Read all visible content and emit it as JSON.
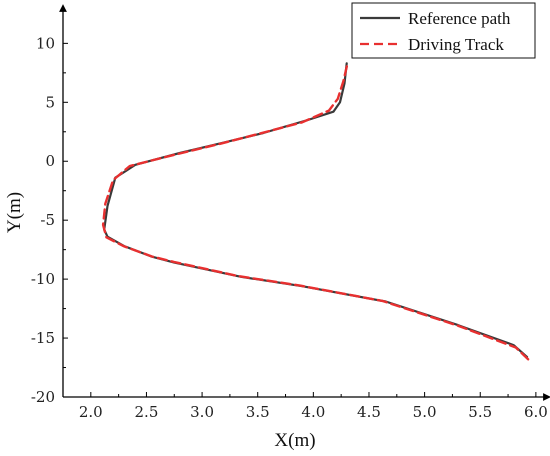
{
  "chart_data": {
    "type": "line",
    "xlabel": "X(m)",
    "ylabel": "Y(m)",
    "xlim": [
      1.75,
      6.1
    ],
    "ylim": [
      -20,
      13
    ],
    "xticks": [
      2.0,
      2.5,
      3.0,
      3.5,
      4.0,
      4.5,
      5.0,
      5.5,
      6.0
    ],
    "xtick_labels": [
      "2.0",
      "2.5",
      "3.0",
      "3.5",
      "4.0",
      "4.5",
      "5.0",
      "5.5",
      "6.0"
    ],
    "yticks": [
      -20,
      -15,
      -10,
      -5,
      0,
      5,
      10
    ],
    "ytick_labels": [
      "-20",
      "-15",
      "-10",
      "-5",
      "0",
      "5",
      "10"
    ],
    "grid": false,
    "legend_position": "top-right",
    "series": [
      {
        "name": "Reference path",
        "color": "#3a3a3a",
        "style": "solid",
        "points": [
          [
            5.92,
            -16.6
          ],
          [
            5.8,
            -15.6
          ],
          [
            5.3,
            -13.9
          ],
          [
            4.65,
            -11.9
          ],
          [
            3.9,
            -10.6
          ],
          [
            3.35,
            -9.8
          ],
          [
            2.75,
            -8.6
          ],
          [
            2.55,
            -8.1
          ],
          [
            2.3,
            -7.2
          ],
          [
            2.15,
            -6.4
          ],
          [
            2.12,
            -5.8
          ],
          [
            2.15,
            -3.8
          ],
          [
            2.22,
            -1.4
          ],
          [
            2.4,
            -0.3
          ],
          [
            2.8,
            0.7
          ],
          [
            3.2,
            1.6
          ],
          [
            3.55,
            2.4
          ],
          [
            3.95,
            3.5
          ],
          [
            4.18,
            4.2
          ],
          [
            4.24,
            5.0
          ],
          [
            4.28,
            6.6
          ],
          [
            4.3,
            8.3
          ]
        ]
      },
      {
        "name": "Driving Track",
        "color": "#e83030",
        "style": "dashed",
        "points": [
          [
            5.93,
            -16.8
          ],
          [
            5.82,
            -15.8
          ],
          [
            5.3,
            -13.95
          ],
          [
            4.62,
            -11.85
          ],
          [
            3.88,
            -10.55
          ],
          [
            3.33,
            -9.75
          ],
          [
            2.75,
            -8.55
          ],
          [
            2.55,
            -8.08
          ],
          [
            2.3,
            -7.22
          ],
          [
            2.14,
            -6.45
          ],
          [
            2.11,
            -5.4
          ],
          [
            2.13,
            -3.6
          ],
          [
            2.2,
            -1.6
          ],
          [
            2.35,
            -0.4
          ],
          [
            2.75,
            0.55
          ],
          [
            3.15,
            1.45
          ],
          [
            3.5,
            2.3
          ],
          [
            3.9,
            3.3
          ],
          [
            4.14,
            4.3
          ],
          [
            4.22,
            5.3
          ],
          [
            4.27,
            6.8
          ],
          [
            4.31,
            8.4
          ]
        ]
      }
    ]
  }
}
